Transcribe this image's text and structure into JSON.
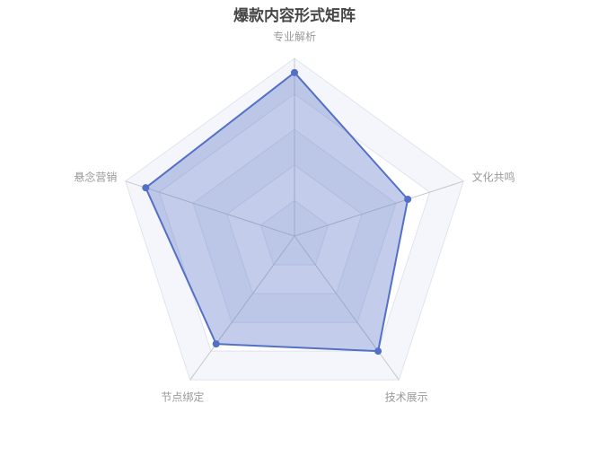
{
  "chart_data": {
    "type": "radar",
    "title": "爆款内容形式矩阵",
    "indicators": [
      "专业解析",
      "文化共鸣",
      "技术展示",
      "节点绑定",
      "悬念营销"
    ],
    "max": 100,
    "series": [
      {
        "values": [
          92,
          67,
          80,
          75,
          88
        ]
      }
    ],
    "split_number": 5,
    "colors": {
      "line": "#5470c6",
      "area": "rgba(84,112,198,0.35)",
      "axis": "#c8c8c8",
      "split_line": "#e0e4ee"
    }
  }
}
